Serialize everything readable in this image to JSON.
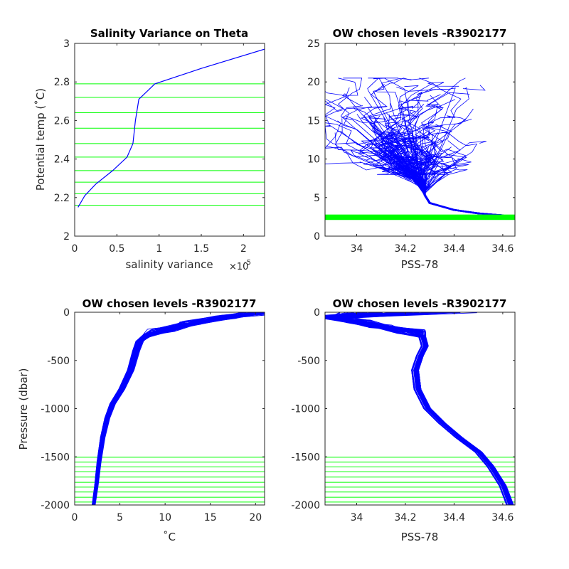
{
  "colors": {
    "profile": "#0000ff",
    "levels": "#00ff00",
    "axis": "#262626"
  },
  "chart_data": [
    {
      "type": "line",
      "title": "Salinity Variance on Theta",
      "xlabel": "salinity variance",
      "ylabel": "Potential temp (˚C)",
      "xlim": [
        0,
        2.25e-05
      ],
      "ylim": [
        2,
        3
      ],
      "x_ticks": [
        0,
        0.5,
        1,
        1.5,
        2
      ],
      "x_exponent_base": "×10",
      "x_exponent": "-5",
      "y_ticks": [
        "2",
        "2.2",
        "2.4",
        "2.6",
        "2.8",
        "3"
      ],
      "series": [
        {
          "x": [
            4e-07,
            1.2e-06,
            2.5e-06,
            4.5e-06,
            6.2e-06,
            6.9e-06,
            7.2e-06,
            7.6e-06,
            9.5e-06,
            1.5e-05,
            2.25e-05
          ],
          "y": [
            2.15,
            2.21,
            2.27,
            2.34,
            2.41,
            2.48,
            2.6,
            2.71,
            2.79,
            2.87,
            2.97
          ]
        }
      ],
      "chosen_levels": [
        2.16,
        2.22,
        2.28,
        2.34,
        2.41,
        2.48,
        2.56,
        2.64,
        2.72,
        2.79
      ]
    },
    {
      "type": "line",
      "title": "OW chosen levels -R3902177",
      "xlabel": "PSS-78",
      "ylabel": "",
      "xlim": [
        33.87,
        34.65
      ],
      "ylim": [
        0,
        25
      ],
      "x_ticks": [
        "34",
        "34.2",
        "34.4",
        "34.6"
      ],
      "y_ticks": [
        "0",
        "5",
        "10",
        "15",
        "20",
        "25"
      ],
      "profile_envelope": {
        "deep": {
          "x": [
            34.6,
            34.5,
            34.4,
            34.3,
            34.28
          ],
          "y": [
            2.7,
            2.95,
            3.4,
            4.3,
            5.3
          ]
        },
        "left_edge": {
          "x": [
            34.28,
            34.26,
            34.2,
            34.1,
            34.0,
            33.9,
            33.87
          ],
          "y": [
            5.5,
            6.5,
            7.5,
            8.6,
            9.6,
            10.5,
            11.2
          ]
        },
        "right_edge": {
          "x": [
            34.28,
            34.3,
            34.27,
            34.2,
            34.28,
            34.4,
            34.5,
            34.6
          ],
          "y": [
            5.5,
            6.6,
            8.5,
            10.5,
            12.5,
            15.5,
            18.0,
            19.8
          ]
        },
        "surface_range": {
          "x": [
            33.87,
            34.62
          ],
          "y": [
            8.0,
            20.5
          ]
        }
      },
      "chosen_band": [
        2.1,
        2.8
      ]
    },
    {
      "type": "line",
      "title": "OW chosen levels -R3902177",
      "xlabel": "˚C",
      "ylabel": "Pressure (dbar)",
      "xlim": [
        0,
        21
      ],
      "ylim": [
        -2000,
        0
      ],
      "x_ticks": [
        "0",
        "5",
        "10",
        "15",
        "20"
      ],
      "y_ticks": [
        "-2000",
        "-1500",
        "-1000",
        "-500",
        "0"
      ],
      "profile": {
        "x": [
          2.1,
          2.4,
          2.7,
          3.1,
          3.6,
          4.2,
          5.2,
          6.2,
          6.8,
          7.2,
          8.0,
          10.0,
          13.0,
          17.0,
          21.0
        ],
        "y": [
          -2000,
          -1800,
          -1550,
          -1300,
          -1100,
          -950,
          -800,
          -600,
          -400,
          -300,
          -240,
          -180,
          -110,
          -50,
          0
        ]
      },
      "chosen_levels": [
        -1505,
        -1555,
        -1605,
        -1655,
        -1710,
        -1765,
        -1815,
        -1865,
        -1920,
        -1970
      ]
    },
    {
      "type": "line",
      "title": "OW chosen levels -R3902177",
      "xlabel": "PSS-78",
      "ylabel": "",
      "xlim": [
        33.87,
        34.65
      ],
      "ylim": [
        -2000,
        0
      ],
      "x_ticks": [
        "34",
        "34.2",
        "34.4",
        "34.6"
      ],
      "y_ticks": [
        "-2000",
        "-1500",
        "-1000",
        "-500",
        "0"
      ],
      "profile": {
        "x": [
          34.63,
          34.6,
          34.55,
          34.5,
          34.42,
          34.35,
          34.29,
          34.25,
          34.24,
          34.26,
          34.28,
          34.27,
          34.22,
          34.1,
          34.0,
          33.9
        ],
        "y": [
          -2000,
          -1800,
          -1600,
          -1450,
          -1300,
          -1150,
          -1000,
          -800,
          -600,
          -450,
          -350,
          -260,
          -200,
          -150,
          -100,
          -50
        ]
      },
      "chosen_levels": [
        -1505,
        -1555,
        -1605,
        -1655,
        -1710,
        -1765,
        -1815,
        -1865,
        -1920,
        -1970
      ]
    }
  ]
}
